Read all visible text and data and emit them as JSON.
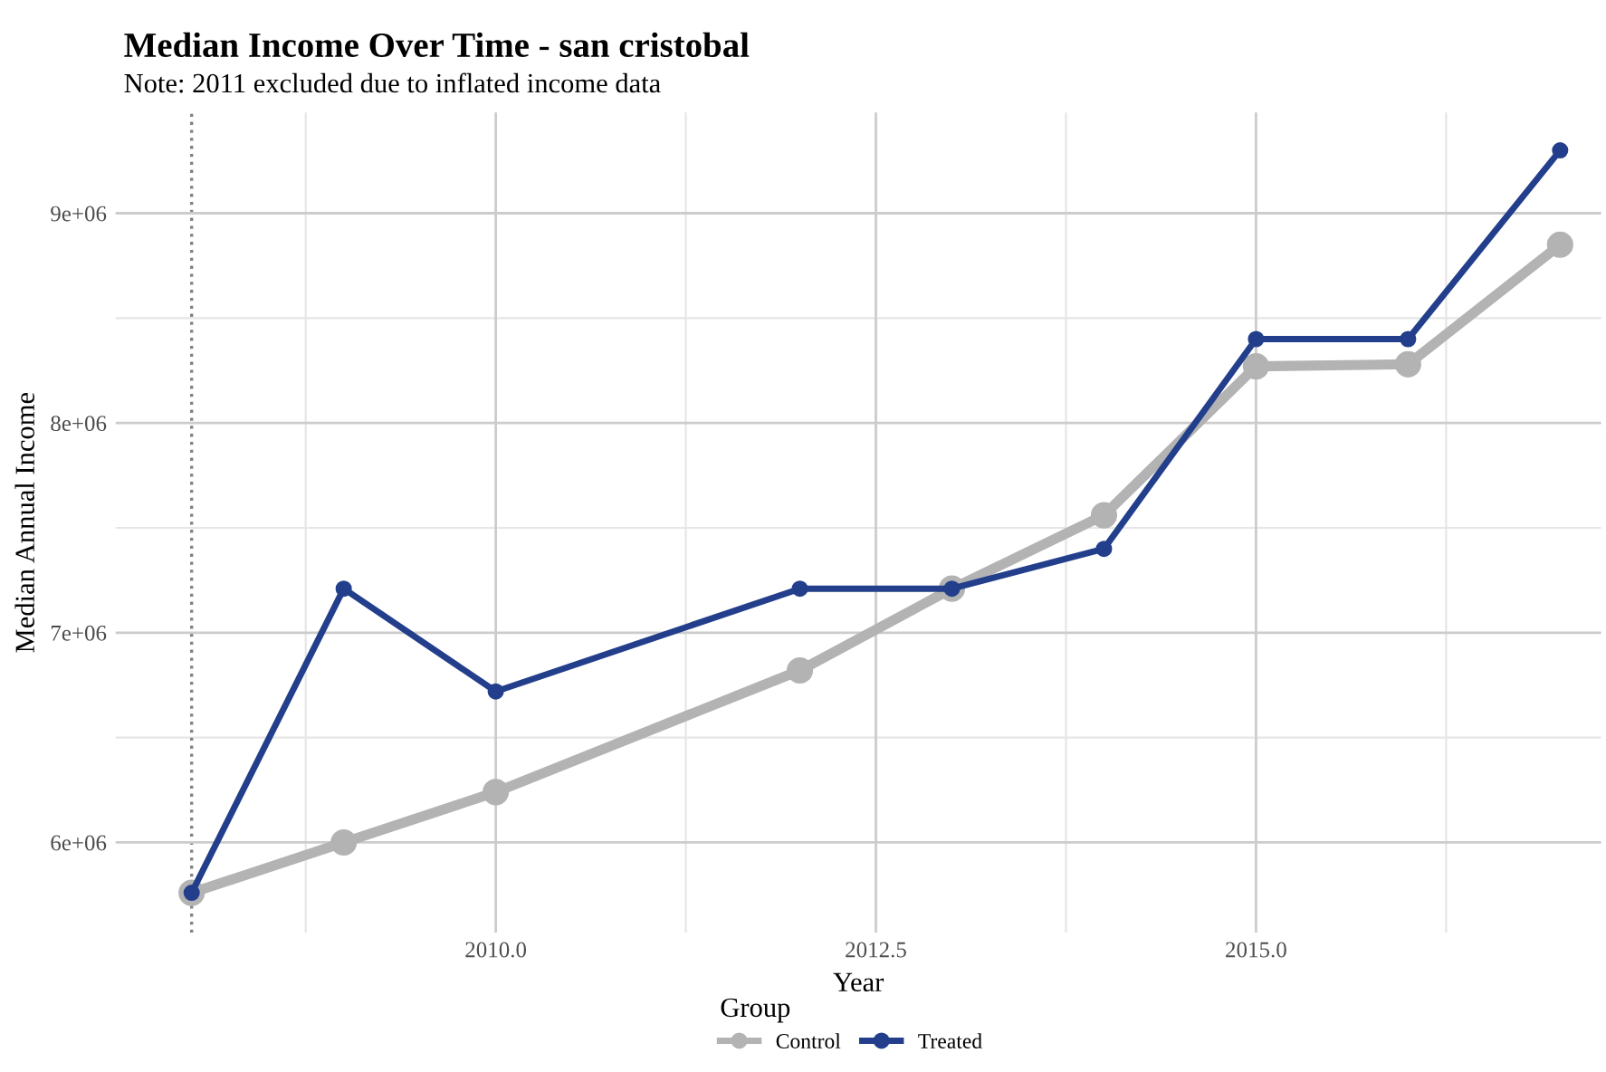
{
  "chart_data": {
    "type": "line",
    "title": "Median Income Over Time - san cristobal",
    "subtitle": "Note: 2011 excluded due to inflated income data",
    "xlabel": "Year",
    "ylabel": "Median Annual Income",
    "legend_title": "Group",
    "x": [
      2008,
      2009,
      2010,
      2012,
      2013,
      2014,
      2015,
      2016,
      2017
    ],
    "series": [
      {
        "name": "Control",
        "color": "#b3b3b3",
        "values": [
          5760000,
          6000000,
          6240000,
          6820000,
          7210000,
          7560000,
          8270000,
          8280000,
          8850000
        ]
      },
      {
        "name": "Treated",
        "color": "#233f8c",
        "values": [
          5760000,
          7210000,
          6720000,
          7210000,
          7210000,
          7400000,
          8400000,
          8400000,
          9300000
        ]
      }
    ],
    "xlim": [
      2007.5,
      2017.27
    ],
    "xticks": [
      {
        "value": 2010,
        "label": "2010.0"
      },
      {
        "value": 2012.5,
        "label": "2012.5"
      },
      {
        "value": 2015,
        "label": "2015.0"
      }
    ],
    "ylim": [
      5570000,
      9480000
    ],
    "yticks": [
      {
        "value": 6000000,
        "label": "6e+06"
      },
      {
        "value": 7000000,
        "label": "7e+06"
      },
      {
        "value": 8000000,
        "label": "8e+06"
      },
      {
        "value": 9000000,
        "label": "9e+06"
      }
    ],
    "ref_lines": [
      {
        "axis": "x",
        "value": 2008,
        "color": "#808080",
        "line_style": "dotted"
      }
    ],
    "grid": true,
    "legend": "bottom",
    "marker": "circle",
    "line_style": "solid"
  }
}
